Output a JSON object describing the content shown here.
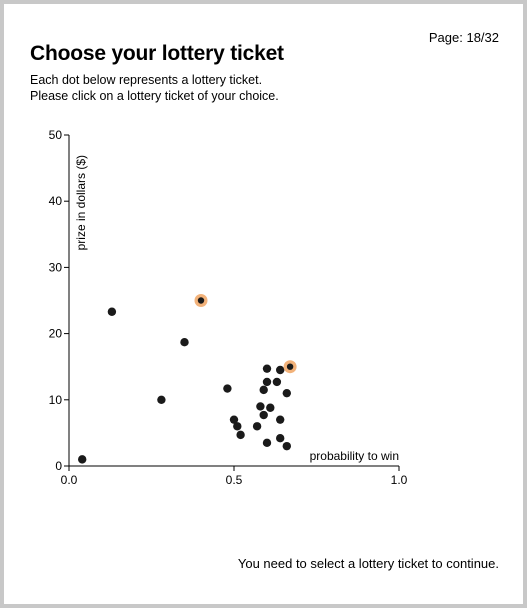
{
  "page": {
    "page_label": "Page: 18/32",
    "title": "Choose your lottery ticket",
    "instructions": [
      "Each dot below represents a lottery ticket.",
      "Please click on a lottery ticket of your choice."
    ],
    "footer_message": "You need to select a lottery ticket to continue."
  },
  "colors": {
    "dot": "#1a1a1a",
    "highlight": "#f2b27a"
  },
  "chart_data": {
    "type": "scatter",
    "xlabel": "probability to win",
    "ylabel": "prize in dollars ($)",
    "xlim": [
      0,
      1
    ],
    "ylim": [
      0,
      50
    ],
    "x_ticks": [
      0,
      0.5,
      1
    ],
    "x_tick_labels": [
      "0.0",
      "0.5",
      "1.0"
    ],
    "y_ticks": [
      0,
      10,
      20,
      30,
      40,
      50
    ],
    "y_tick_labels": [
      "0",
      "10",
      "20",
      "30",
      "40",
      "50"
    ],
    "grid": false,
    "points": [
      {
        "x": 0.04,
        "y": 1,
        "highlighted": false
      },
      {
        "x": 0.13,
        "y": 23.3,
        "highlighted": false
      },
      {
        "x": 0.28,
        "y": 10,
        "highlighted": false
      },
      {
        "x": 0.35,
        "y": 18.7,
        "highlighted": false
      },
      {
        "x": 0.4,
        "y": 25,
        "highlighted": true
      },
      {
        "x": 0.48,
        "y": 11.7,
        "highlighted": false
      },
      {
        "x": 0.5,
        "y": 7,
        "highlighted": false
      },
      {
        "x": 0.51,
        "y": 6,
        "highlighted": false
      },
      {
        "x": 0.52,
        "y": 4.7,
        "highlighted": false
      },
      {
        "x": 0.57,
        "y": 6,
        "highlighted": false
      },
      {
        "x": 0.58,
        "y": 9,
        "highlighted": false
      },
      {
        "x": 0.59,
        "y": 7.7,
        "highlighted": false
      },
      {
        "x": 0.59,
        "y": 11.5,
        "highlighted": false
      },
      {
        "x": 0.6,
        "y": 12.7,
        "highlighted": false
      },
      {
        "x": 0.6,
        "y": 14.7,
        "highlighted": false
      },
      {
        "x": 0.6,
        "y": 3.5,
        "highlighted": false
      },
      {
        "x": 0.61,
        "y": 8.8,
        "highlighted": false
      },
      {
        "x": 0.63,
        "y": 12.7,
        "highlighted": false
      },
      {
        "x": 0.64,
        "y": 14.5,
        "highlighted": false
      },
      {
        "x": 0.64,
        "y": 7,
        "highlighted": false
      },
      {
        "x": 0.64,
        "y": 4.2,
        "highlighted": false
      },
      {
        "x": 0.66,
        "y": 11,
        "highlighted": false
      },
      {
        "x": 0.66,
        "y": 3,
        "highlighted": false
      },
      {
        "x": 0.67,
        "y": 15,
        "highlighted": true
      }
    ]
  }
}
